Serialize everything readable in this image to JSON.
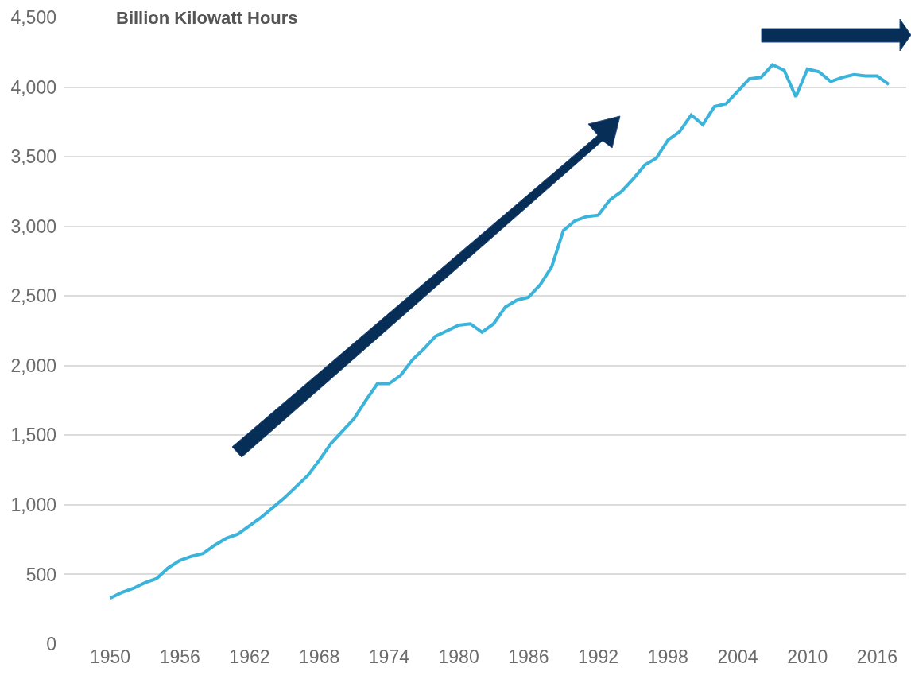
{
  "chart_data": {
    "type": "line",
    "ylabel": "Billion Kilowatt Hours",
    "x": [
      1950,
      1951,
      1952,
      1953,
      1954,
      1955,
      1956,
      1957,
      1958,
      1959,
      1960,
      1961,
      1962,
      1963,
      1964,
      1965,
      1966,
      1967,
      1968,
      1969,
      1970,
      1971,
      1972,
      1973,
      1974,
      1975,
      1976,
      1977,
      1978,
      1979,
      1980,
      1981,
      1982,
      1983,
      1984,
      1985,
      1986,
      1987,
      1988,
      1989,
      1990,
      1991,
      1992,
      1993,
      1994,
      1995,
      1996,
      1997,
      1998,
      1999,
      2000,
      2001,
      2002,
      2003,
      2004,
      2005,
      2006,
      2007,
      2008,
      2009,
      2010,
      2011,
      2012,
      2013,
      2014,
      2015,
      2016,
      2017
    ],
    "series": [
      {
        "color": "#3bb3da",
        "values": [
          330,
          370,
          400,
          440,
          470,
          547,
          600,
          630,
          650,
          710,
          760,
          790,
          850,
          910,
          980,
          1050,
          1130,
          1210,
          1320,
          1440,
          1530,
          1620,
          1750,
          1870,
          1870,
          1930,
          2040,
          2120,
          2210,
          2250,
          2290,
          2300,
          2240,
          2300,
          2420,
          2470,
          2490,
          2580,
          2710,
          2970,
          3040,
          3070,
          3080,
          3190,
          3250,
          3340,
          3440,
          3490,
          3620,
          3680,
          3800,
          3730,
          3860,
          3880,
          3970,
          4060,
          4070,
          4160,
          4120,
          3930,
          4130,
          4110,
          4040,
          4070,
          4090,
          4080,
          4080,
          4020
        ]
      }
    ],
    "xlim": [
      1946,
      2018.5
    ],
    "xticks": [
      1950,
      1956,
      1962,
      1968,
      1974,
      1980,
      1986,
      1992,
      1998,
      2004,
      2010,
      2016
    ],
    "ylim": [
      0,
      4500
    ],
    "yticks": [
      {
        "value": 0,
        "label": "0"
      },
      {
        "value": 500,
        "label": "500"
      },
      {
        "value": 1000,
        "label": "1,000"
      },
      {
        "value": 1500,
        "label": "1,500"
      },
      {
        "value": 2000,
        "label": "2,000"
      },
      {
        "value": 2500,
        "label": "2,500"
      },
      {
        "value": 3000,
        "label": "3,000"
      },
      {
        "value": 3500,
        "label": "3,500"
      },
      {
        "value": 4000,
        "label": "4,000"
      },
      {
        "value": 4500,
        "label": "4,500"
      }
    ],
    "grid": "y",
    "marker": "none",
    "line_style": "solid"
  }
}
